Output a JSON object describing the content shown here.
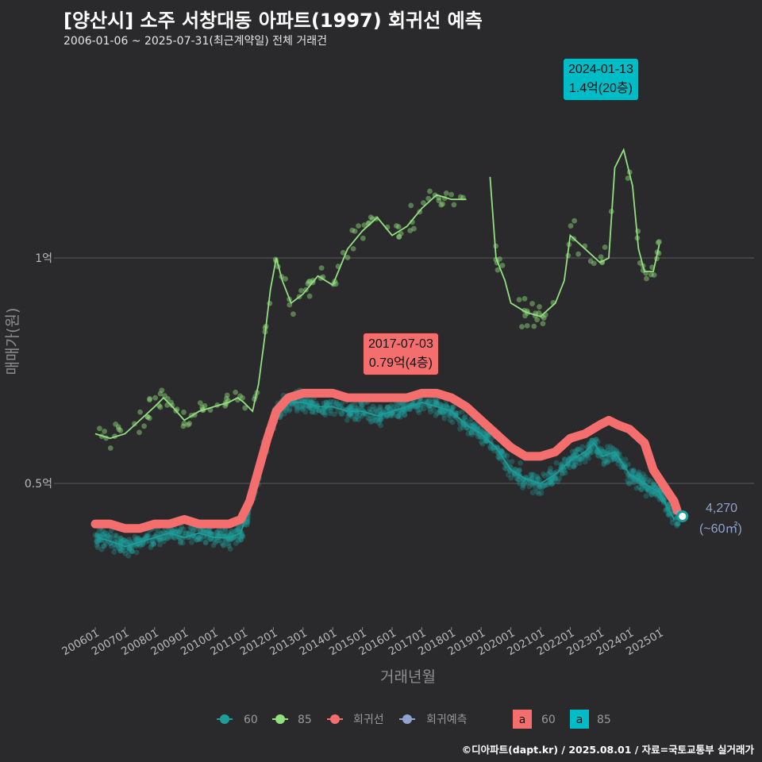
{
  "title": "[양산시] 소주 서창대동 아파트(1997) 회귀선 예측",
  "subtitle": "2006-01-06 ~ 2025-07-31(최근계약일) 전체 거래건",
  "footer": "©디아파트(dapt.kr) / 2025.08.01 / 자료=국토교통부 실거래가",
  "colors": {
    "background": "#2a2a2c",
    "area60": "#1e9e9a",
    "area85": "#93e07f",
    "regression": "#f46e6e",
    "prediction": "#8fa3cc",
    "label60": "#f46e6e",
    "label85": "#00bcc6"
  },
  "callouts": {
    "max85": {
      "date": "2024-01-13",
      "text": "1.4억(20층)"
    },
    "max60": {
      "date": "2017-07-03",
      "text": "0.79억(4층)"
    }
  },
  "latest": {
    "count": "4,270",
    "area": "(~60㎡)"
  },
  "chart_data": {
    "type": "scatter",
    "xlabel": "거래년월",
    "ylabel": "매매가(원)",
    "x_ticks": [
      "200601",
      "200701",
      "200801",
      "200901",
      "201001",
      "201101",
      "201201",
      "201301",
      "201401",
      "201501",
      "201601",
      "201701",
      "201801",
      "201901",
      "202001",
      "202101",
      "202201",
      "202301",
      "202401",
      "202501"
    ],
    "x_range": [
      2006.0,
      2025.7
    ],
    "y_range_eok": [
      0.21,
      1.5
    ],
    "y_ticks": [
      {
        "value": 0.5,
        "label": "0.5억"
      },
      {
        "value": 1.0,
        "label": "1억"
      }
    ],
    "grid": "horizontal",
    "legend_position": "bottom",
    "legend": {
      "series": [
        "60",
        "85",
        "회귀선",
        "회귀예측"
      ],
      "label_boxes": [
        {
          "text": "a",
          "name": "60"
        },
        {
          "text": "a",
          "name": "85"
        }
      ]
    },
    "series": [
      {
        "name": "60",
        "kind": "monthly_median_line",
        "points": [
          [
            2006.1,
            0.38
          ],
          [
            2006.6,
            0.37
          ],
          [
            2007.0,
            0.36
          ],
          [
            2007.5,
            0.37
          ],
          [
            2008.0,
            0.38
          ],
          [
            2008.5,
            0.39
          ],
          [
            2009.0,
            0.38
          ],
          [
            2009.5,
            0.39
          ],
          [
            2010.0,
            0.38
          ],
          [
            2010.5,
            0.38
          ],
          [
            2010.9,
            0.39
          ],
          [
            2011.2,
            0.45
          ],
          [
            2011.5,
            0.52
          ],
          [
            2011.8,
            0.6
          ],
          [
            2012.1,
            0.66
          ],
          [
            2012.5,
            0.68
          ],
          [
            2013.0,
            0.68
          ],
          [
            2013.5,
            0.67
          ],
          [
            2014.0,
            0.67
          ],
          [
            2014.5,
            0.66
          ],
          [
            2015.0,
            0.66
          ],
          [
            2015.5,
            0.65
          ],
          [
            2016.0,
            0.66
          ],
          [
            2016.5,
            0.67
          ],
          [
            2017.0,
            0.68
          ],
          [
            2017.5,
            0.67
          ],
          [
            2018.0,
            0.66
          ],
          [
            2018.5,
            0.63
          ],
          [
            2019.0,
            0.61
          ],
          [
            2019.5,
            0.58
          ],
          [
            2020.0,
            0.53
          ],
          [
            2020.5,
            0.51
          ],
          [
            2021.0,
            0.5
          ],
          [
            2021.5,
            0.52
          ],
          [
            2022.0,
            0.55
          ],
          [
            2022.5,
            0.57
          ],
          [
            2022.8,
            0.59
          ],
          [
            2023.1,
            0.56
          ],
          [
            2023.5,
            0.57
          ],
          [
            2024.0,
            0.52
          ],
          [
            2024.5,
            0.5
          ],
          [
            2025.0,
            0.48
          ],
          [
            2025.5,
            0.42
          ]
        ]
      },
      {
        "name": "85",
        "kind": "monthly_median_line",
        "segments": [
          [
            [
              2006.0,
              0.61
            ],
            [
              2006.5,
              0.6
            ],
            [
              2007.0,
              0.61
            ],
            [
              2007.5,
              0.64
            ],
            [
              2008.0,
              0.67
            ],
            [
              2008.3,
              0.69
            ],
            [
              2008.6,
              0.67
            ],
            [
              2009.0,
              0.64
            ],
            [
              2009.5,
              0.66
            ],
            [
              2010.0,
              0.67
            ],
            [
              2010.5,
              0.68
            ],
            [
              2010.8,
              0.69
            ],
            [
              2011.0,
              0.68
            ],
            [
              2011.3,
              0.66
            ],
            [
              2011.5,
              0.72
            ],
            [
              2011.7,
              0.82
            ],
            [
              2011.9,
              0.93
            ],
            [
              2012.1,
              1.0
            ],
            [
              2012.3,
              0.95
            ],
            [
              2012.6,
              0.9
            ],
            [
              2013.0,
              0.92
            ],
            [
              2013.5,
              0.96
            ],
            [
              2014.0,
              0.94
            ],
            [
              2014.5,
              1.02
            ],
            [
              2015.0,
              1.06
            ],
            [
              2015.5,
              1.09
            ],
            [
              2016.0,
              1.05
            ],
            [
              2016.5,
              1.07
            ],
            [
              2017.0,
              1.11
            ],
            [
              2017.5,
              1.14
            ],
            [
              2018.0,
              1.13
            ],
            [
              2018.5,
              1.13
            ]
          ],
          [
            [
              2019.3,
              1.18
            ],
            [
              2019.5,
              1.0
            ],
            [
              2019.8,
              0.95
            ],
            [
              2020.0,
              0.9
            ],
            [
              2020.5,
              0.88
            ],
            [
              2021.0,
              0.87
            ],
            [
              2021.5,
              0.9
            ],
            [
              2021.8,
              0.95
            ],
            [
              2022.0,
              1.05
            ],
            [
              2022.5,
              1.02
            ],
            [
              2023.0,
              0.99
            ],
            [
              2023.3,
              1.0
            ],
            [
              2023.5,
              1.2
            ],
            [
              2023.8,
              1.24
            ],
            [
              2024.1,
              1.16
            ],
            [
              2024.3,
              1.02
            ],
            [
              2024.5,
              0.97
            ],
            [
              2024.8,
              0.97
            ],
            [
              2025.0,
              1.03
            ]
          ]
        ]
      },
      {
        "name": "회귀선",
        "kind": "regression",
        "points": [
          [
            2006.0,
            0.41
          ],
          [
            2006.5,
            0.41
          ],
          [
            2007.0,
            0.4
          ],
          [
            2007.5,
            0.4
          ],
          [
            2008.0,
            0.41
          ],
          [
            2008.5,
            0.41
          ],
          [
            2009.0,
            0.42
          ],
          [
            2009.5,
            0.41
          ],
          [
            2010.0,
            0.41
          ],
          [
            2010.5,
            0.41
          ],
          [
            2010.9,
            0.42
          ],
          [
            2011.2,
            0.46
          ],
          [
            2011.5,
            0.53
          ],
          [
            2011.8,
            0.6
          ],
          [
            2012.1,
            0.66
          ],
          [
            2012.5,
            0.69
          ],
          [
            2013.0,
            0.7
          ],
          [
            2013.5,
            0.7
          ],
          [
            2014.0,
            0.7
          ],
          [
            2014.5,
            0.69
          ],
          [
            2015.0,
            0.69
          ],
          [
            2015.5,
            0.69
          ],
          [
            2016.0,
            0.69
          ],
          [
            2016.5,
            0.69
          ],
          [
            2017.0,
            0.7
          ],
          [
            2017.5,
            0.7
          ],
          [
            2018.0,
            0.69
          ],
          [
            2018.5,
            0.67
          ],
          [
            2019.0,
            0.64
          ],
          [
            2019.5,
            0.61
          ],
          [
            2020.0,
            0.58
          ],
          [
            2020.5,
            0.56
          ],
          [
            2021.0,
            0.56
          ],
          [
            2021.5,
            0.57
          ],
          [
            2022.0,
            0.6
          ],
          [
            2022.5,
            0.61
          ],
          [
            2023.0,
            0.63
          ],
          [
            2023.3,
            0.64
          ],
          [
            2023.6,
            0.63
          ],
          [
            2024.0,
            0.62
          ],
          [
            2024.5,
            0.59
          ],
          [
            2024.8,
            0.53
          ],
          [
            2025.1,
            0.5
          ],
          [
            2025.5,
            0.46
          ],
          [
            2025.6,
            0.44
          ]
        ]
      },
      {
        "name": "회귀예측",
        "kind": "prediction",
        "points": [
          [
            2025.6,
            0.44
          ],
          [
            2025.7,
            0.42
          ]
        ]
      }
    ],
    "annotations": [
      {
        "x": 2017.51,
        "y": 0.79,
        "label": "2017-07-03 0.79억(4층)",
        "area": "60"
      },
      {
        "x": 2024.04,
        "y": 1.4,
        "label": "2024-01-13 1.4억(20층)",
        "area": "85"
      },
      {
        "x": 2025.7,
        "y": 0.427,
        "label": "4,270 (~60㎡)",
        "kind": "latest_point"
      }
    ]
  }
}
